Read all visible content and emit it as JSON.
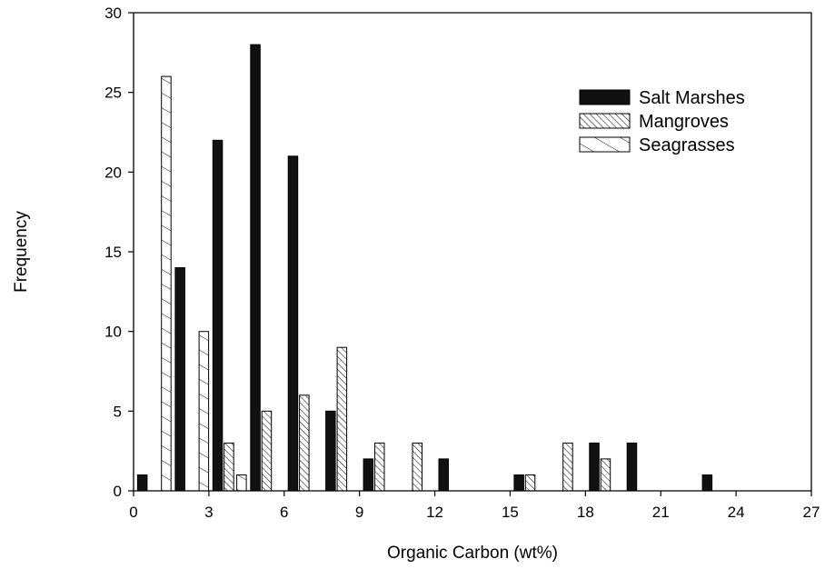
{
  "chart_data": {
    "type": "bar",
    "xlabel": "Organic Carbon (wt%)",
    "ylabel": "Frequency",
    "xlim": [
      0,
      27
    ],
    "ylim": [
      0,
      30
    ],
    "xticks": [
      "0",
      "3",
      "6",
      "9",
      "12",
      "15",
      "18",
      "21",
      "24",
      "27"
    ],
    "yticks": [
      "0",
      "5",
      "10",
      "15",
      "20",
      "25",
      "30"
    ],
    "grid": false,
    "legend_position": "top-right",
    "series": [
      {
        "name": "Salt Marshes",
        "fill": "solid",
        "color": "#111111",
        "points": [
          {
            "x": 0.35,
            "y": 1
          },
          {
            "x": 1.85,
            "y": 14
          },
          {
            "x": 3.35,
            "y": 22
          },
          {
            "x": 4.85,
            "y": 28
          },
          {
            "x": 6.35,
            "y": 21
          },
          {
            "x": 7.85,
            "y": 5
          },
          {
            "x": 9.35,
            "y": 2
          },
          {
            "x": 12.35,
            "y": 2
          },
          {
            "x": 15.35,
            "y": 1
          },
          {
            "x": 18.35,
            "y": 3
          },
          {
            "x": 19.85,
            "y": 3
          },
          {
            "x": 22.85,
            "y": 1
          }
        ]
      },
      {
        "name": "Mangroves",
        "fill": "dense-hatch",
        "color": "#111111",
        "points": [
          {
            "x": 3.8,
            "y": 3
          },
          {
            "x": 5.3,
            "y": 5
          },
          {
            "x": 6.8,
            "y": 6
          },
          {
            "x": 8.3,
            "y": 9
          },
          {
            "x": 9.8,
            "y": 3
          },
          {
            "x": 11.3,
            "y": 3
          },
          {
            "x": 15.8,
            "y": 1
          },
          {
            "x": 17.3,
            "y": 3
          },
          {
            "x": 18.8,
            "y": 2
          }
        ]
      },
      {
        "name": "Seagrasses",
        "fill": "sparse-hatch",
        "color": "#111111",
        "points": [
          {
            "x": 1.3,
            "y": 26
          },
          {
            "x": 2.8,
            "y": 10
          },
          {
            "x": 4.3,
            "y": 1
          }
        ]
      }
    ]
  }
}
